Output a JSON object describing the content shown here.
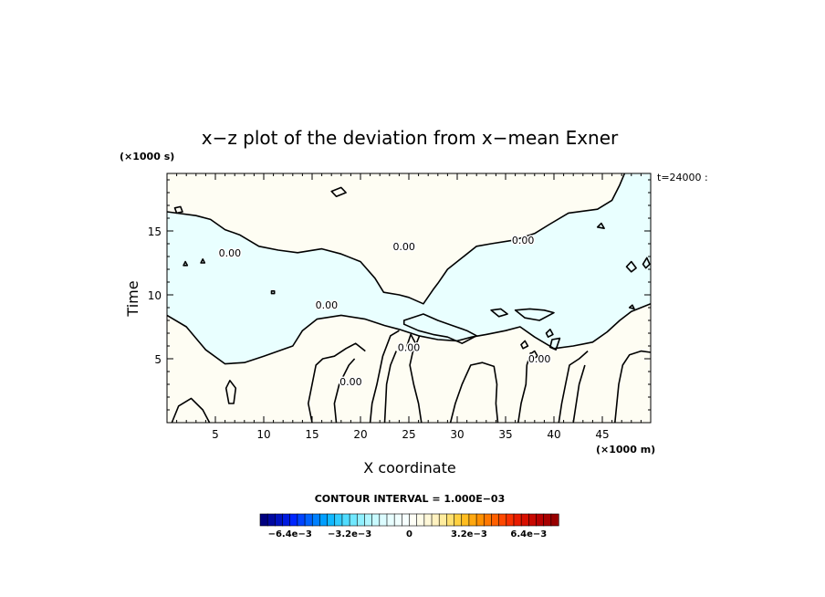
{
  "chart_data": {
    "type": "contour",
    "title": "x−z plot of the deviation from x−mean Exner",
    "xlabel": "X coordinate",
    "ylabel": "Time",
    "x_unit": "(×1000 m)",
    "y_unit": "(×1000 s)",
    "time_label": "t=24000 :",
    "xlim": [
      0,
      50
    ],
    "ylim": [
      0,
      19.5
    ],
    "x_ticks": [
      5,
      10,
      15,
      20,
      25,
      30,
      35,
      40,
      45
    ],
    "y_ticks": [
      5,
      10,
      15
    ],
    "contour_interval_text": "CONTOUR INTERVAL = 1.000E−03",
    "contour_label": "0.00",
    "colorbar": {
      "tick_labels": [
        "−6.4e−3",
        "−3.2e−3",
        "0",
        "3.2e−3",
        "6.4e−3"
      ],
      "tick_values": [
        -0.0064,
        -0.0032,
        0,
        0.0032,
        0.0064
      ],
      "levels": 40,
      "range": [
        -0.008,
        0.008
      ],
      "colors": [
        "#00007f",
        "#0008a0",
        "#0012c0",
        "#001be0",
        "#0026ff",
        "#0044ff",
        "#0062ff",
        "#0080ff",
        "#009eff",
        "#10b8ff",
        "#30ccff",
        "#50dcff",
        "#70e8ff",
        "#90f0ff",
        "#b0f6ff",
        "#c8faff",
        "#dcfcff",
        "#e8feff",
        "#f0ffff",
        "#f6ffff",
        "#fffff6",
        "#fffce8",
        "#fff8d8",
        "#fff2c0",
        "#ffec9e",
        "#ffe070",
        "#ffd040",
        "#ffbd20",
        "#ffa810",
        "#ff9000",
        "#ff7800",
        "#ff6000",
        "#ff4800",
        "#f83000",
        "#e81c00",
        "#d81000",
        "#c80800",
        "#b80000",
        "#a80000",
        "#980000"
      ]
    },
    "fill_colors": {
      "negative": "#e9ffff",
      "positive": "#fefdf3"
    },
    "contour_paths": [
      "M0,16.5 L3,16.2 L4.5,15.9 L6,15.1 L7.5,14.7 L9.5,13.8 L11.5,13.5 L13.5,13.3 L16,13.6 L18,13.2 L20,12.6 L21.5,11.3 L22.4,10.2 L24,10.0 L25,9.8 L26.5,9.3 L27.5,10.4 L28,10.9 L29,12.0 L30.5,12.9 L32,13.8 L33.5,14.0 L36,14.3 L38,14.8 L39.5,15.5 L41.5,16.4 L44.5,16.7 L46,17.4 L46.8,18.6 L47.3,19.5",
      "M0,8.4 L2,7.5 L3,6.6 L4,5.7 L6,4.6 L8,4.7 L10,5.2 L11.5,5.6 L13,6.0 L14,7.2 L15.5,8.1 L18,8.4 L20.5,8.1 L22.5,7.6 L24,7.3 L26,6.8 L28,6.5 L30,6.4 L31.5,6.7 L33,6.9 L35,7.2 L36.5,7.5 L38,6.7 L40,5.8 L42,6.0 L44,6.3 L45.5,7.1 L46.8,8.0 L48,8.7 L50,9.3",
      "M15,0 L14.6,1.5 L15,3.0 L15.4,4.5 L16.1,5.0 L17.3,5.2 L18.5,5.8 L19.5,6.2 L20.5,5.6",
      "M17.5,0 L17.3,1.5 L17.8,3.0 L18.8,4.5 L19.4,5.0",
      "M21,0 L21.2,1.5 L21.7,3.0 L22.3,5.2 L23.1,6.8 L24,7.2",
      "M22.5,0 L22.6,1.5 L22.7,3.0 L23.1,4.5 L23.7,5.6",
      "M26.3,0 L26.0,1.5 L25.5,3.0 L25.1,4.5 L25.4,5.5 L26.1,6.8",
      "M29.3,0 L29.8,1.5 L30.5,3.0 L31.4,4.5 L32.6,4.7 L33.8,4.4 L34.1,3.0 L34.0,1.5 L34.2,0",
      "M36.3,0 L36.6,1.5 L37.1,3.0 L37.2,4.5 L37.6,5.5",
      "M40.5,0 L40.8,1.5 L41.2,3.0 L41.6,4.5 L42.6,5.0 L43.5,5.6",
      "M42,0 L42.3,1.5 L42.6,3.0 L43.2,4.5",
      "M46.3,0 L46.5,1.5 L46.7,3.0 L47.1,4.5 L47.8,5.3 L49,5.6 L50,5.5",
      "M0.5,0 L1.2,1.3 L2.5,1.9 L3.7,1.0 L4.4,0",
      "M6.4,1.5 L6.1,2.7 L6.5,3.3 L7.1,2.7 L6.9,1.5 Z",
      "M24.8,6.0 L25.2,6.9 L25.7,6.2 L25.3,5.7 Z",
      "M24.5,8.0 L26.5,8.5 L28,8.0 L29.5,7.6 L31,7.2 L32,6.8 L30.5,6.2 L29,6.7 L27.5,6.9 L26,7.2 L24.5,7.7 Z",
      "M33.5,8.8 L34.5,8.9 L35.2,8.5 L34.3,8.3 Z",
      "M36,8.8 L37.5,8.9 L39,8.8 L40,8.6 L38.5,8.0 L37,8.2 Z",
      "M39.2,7.0 L39.6,7.3 L39.9,6.9 L39.4,6.7 Z",
      "M39.8,6.5 L40.6,6.6 L40.2,5.7 L39.6,5.9 Z",
      "M17.0,18.1 L18.0,18.4 L18.5,18.0 L17.5,17.7 Z",
      "M47.5,12.2 L48.0,12.6 L48.5,12.1 L48.0,11.8 Z",
      "M44.5,15.3 L44.9,15.6 L45.2,15.2 Z",
      "M3.5,12.5 L3.7,12.8 L3.9,12.5 Z",
      "M1.7,12.3 L1.9,12.6 L2.1,12.3 Z",
      "M36.6,6.1 L37.0,6.4 L37.3,6.0 L36.8,5.8 Z",
      "M37.6,5.4 L38.0,5.6 L38.3,5.2 L37.9,5.0 Z",
      "M0.8,16.8 L1.4,16.9 L1.6,16.5 L1.0,16.4 Z",
      "M10.8,10.3 L11.1,10.3 L11.1,10.1 L10.8,10.1 Z",
      "M47.8,9.0 L48.1,9.2 L48.3,8.9 Z",
      "M49.2,12.4 L49.6,12.9 L49.9,12.4 L49.5,12.1 Z"
    ],
    "contour_labels": [
      {
        "x": 6.5,
        "y": 13.3,
        "text": "0.00"
      },
      {
        "x": 16.5,
        "y": 9.2,
        "text": "0.00"
      },
      {
        "x": 24.5,
        "y": 13.8,
        "text": "0.00"
      },
      {
        "x": 36.8,
        "y": 14.3,
        "text": "0.00"
      },
      {
        "x": 38.5,
        "y": 5.0,
        "text": "0.00"
      },
      {
        "x": 19.0,
        "y": 3.2,
        "text": "0.00"
      },
      {
        "x": 25.0,
        "y": 5.9,
        "text": "0.00"
      }
    ]
  }
}
